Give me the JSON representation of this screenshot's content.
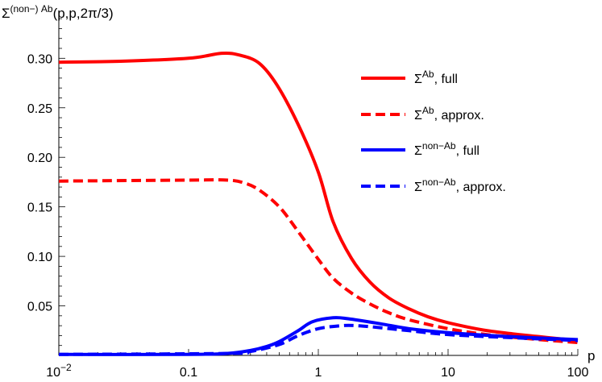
{
  "chart_data": {
    "type": "line",
    "title": "",
    "ylabel": {
      "base": "Σ",
      "sup": "(non−) Ab",
      "rest": "(p,p,2π/3)"
    },
    "xlabel": "p",
    "xscale": "log",
    "xlim": [
      0.01,
      100
    ],
    "ylim": [
      0,
      0.345
    ],
    "grid": false,
    "legend_placement": "top-right",
    "x_ticks": [
      {
        "value": 0.01,
        "label": "10",
        "sup": "−2"
      },
      {
        "value": 0.1,
        "label": "0.1",
        "sup": ""
      },
      {
        "value": 1,
        "label": "1",
        "sup": ""
      },
      {
        "value": 10,
        "label": "10",
        "sup": ""
      },
      {
        "value": 100,
        "label": "100",
        "sup": ""
      }
    ],
    "y_ticks": [
      {
        "value": 0.05,
        "label": "0.05"
      },
      {
        "value": 0.1,
        "label": "0.10"
      },
      {
        "value": 0.15,
        "label": "0.15"
      },
      {
        "value": 0.2,
        "label": "0.20"
      },
      {
        "value": 0.25,
        "label": "0.25"
      },
      {
        "value": 0.3,
        "label": "0.30"
      }
    ],
    "series": [
      {
        "name": {
          "base": "Σ",
          "sup": "Ab",
          "rest": ", full"
        },
        "color": "#ff0000",
        "dash": false,
        "x": [
          0.01,
          0.03,
          0.1,
          0.18,
          0.25,
          0.35,
          0.48,
          0.7,
          1,
          1.3,
          1.8,
          2.5,
          3.5,
          5,
          7,
          10,
          20,
          50,
          100
        ],
        "y": [
          0.296,
          0.297,
          0.3,
          0.305,
          0.303,
          0.295,
          0.273,
          0.233,
          0.185,
          0.135,
          0.098,
          0.074,
          0.058,
          0.047,
          0.039,
          0.033,
          0.025,
          0.019,
          0.015
        ]
      },
      {
        "name": {
          "base": "Σ",
          "sup": "Ab",
          "rest": ", approx."
        },
        "color": "#ff0000",
        "dash": true,
        "x": [
          0.01,
          0.1,
          0.2,
          0.27,
          0.35,
          0.5,
          0.7,
          1,
          1.3,
          1.8,
          2.5,
          3.5,
          5,
          10,
          20,
          50,
          100
        ],
        "y": [
          0.176,
          0.177,
          0.177,
          0.174,
          0.167,
          0.15,
          0.125,
          0.097,
          0.078,
          0.063,
          0.052,
          0.043,
          0.036,
          0.027,
          0.021,
          0.016,
          0.013
        ]
      },
      {
        "name": {
          "base": "Σ",
          "sup": "non−Ab",
          "rest": ", full"
        },
        "color": "#0000ff",
        "dash": false,
        "x": [
          0.01,
          0.1,
          0.2,
          0.3,
          0.4,
          0.5,
          0.7,
          0.9,
          1.3,
          1.7,
          3,
          5,
          10,
          30,
          100
        ],
        "y": [
          0.001,
          0.001,
          0.002,
          0.005,
          0.009,
          0.014,
          0.025,
          0.034,
          0.038,
          0.037,
          0.032,
          0.027,
          0.023,
          0.019,
          0.016
        ]
      },
      {
        "name": {
          "base": "Σ",
          "sup": "non−Ab",
          "rest": ", approx."
        },
        "color": "#0000ff",
        "dash": true,
        "x": [
          0.01,
          0.2,
          0.3,
          0.5,
          0.7,
          1,
          1.5,
          2,
          3,
          5,
          10,
          30,
          100
        ],
        "y": [
          0.001,
          0.002,
          0.004,
          0.011,
          0.02,
          0.027,
          0.03,
          0.03,
          0.028,
          0.025,
          0.021,
          0.018,
          0.015
        ]
      }
    ]
  }
}
